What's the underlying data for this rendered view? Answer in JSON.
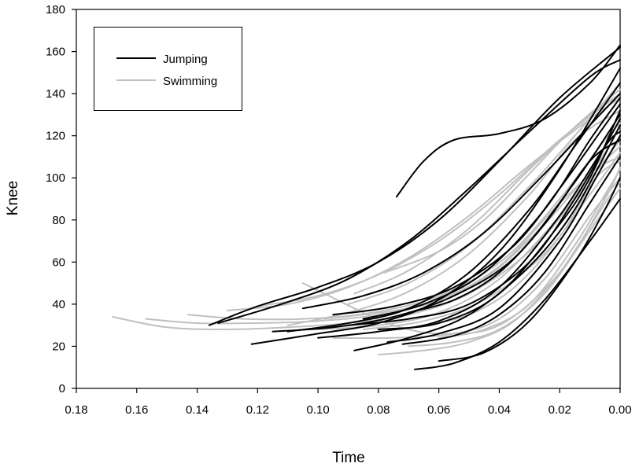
{
  "chart_data": {
    "type": "line",
    "title": "",
    "xlabel": "Time",
    "ylabel": "Knee",
    "xlim": [
      0.18,
      0.0
    ],
    "ylim": [
      0,
      180
    ],
    "x_reversed": true,
    "xticks": [
      "0.18",
      "0.16",
      "0.14",
      "0.12",
      "0.10",
      "0.08",
      "0.06",
      "0.04",
      "0.02",
      "0.00"
    ],
    "yticks": [
      "0",
      "20",
      "40",
      "60",
      "80",
      "100",
      "120",
      "140",
      "160",
      "180"
    ],
    "grid": false,
    "legend_position": "top-left",
    "series": [
      {
        "name": "Jumping",
        "color": "#000000",
        "curves": [
          [
            [
              0.074,
              91
            ],
            [
              0.065,
              108
            ],
            [
              0.055,
              118
            ],
            [
              0.04,
              121
            ],
            [
              0.025,
              128
            ],
            [
              0.01,
              145
            ],
            [
              0.0,
              163
            ]
          ],
          [
            [
              0.136,
              30
            ],
            [
              0.12,
              39
            ],
            [
              0.1,
              48
            ],
            [
              0.08,
              60
            ],
            [
              0.06,
              80
            ],
            [
              0.04,
              108
            ],
            [
              0.02,
              138
            ],
            [
              0.0,
              162
            ]
          ],
          [
            [
              0.133,
              31
            ],
            [
              0.11,
              41
            ],
            [
              0.09,
              52
            ],
            [
              0.07,
              70
            ],
            [
              0.05,
              95
            ],
            [
              0.03,
              122
            ],
            [
              0.01,
              148
            ],
            [
              0.0,
              156
            ]
          ],
          [
            [
              0.122,
              21
            ],
            [
              0.1,
              26
            ],
            [
              0.08,
              31
            ],
            [
              0.06,
              42
            ],
            [
              0.04,
              65
            ],
            [
              0.02,
              104
            ],
            [
              0.0,
              152
            ]
          ],
          [
            [
              0.11,
              27
            ],
            [
              0.09,
              31
            ],
            [
              0.07,
              38
            ],
            [
              0.05,
              55
            ],
            [
              0.03,
              85
            ],
            [
              0.015,
              115
            ],
            [
              0.0,
              145
            ]
          ],
          [
            [
              0.105,
              38
            ],
            [
              0.085,
              44
            ],
            [
              0.065,
              55
            ],
            [
              0.045,
              74
            ],
            [
              0.025,
              102
            ],
            [
              0.01,
              125
            ],
            [
              0.0,
              140
            ]
          ],
          [
            [
              0.095,
              35
            ],
            [
              0.075,
              39
            ],
            [
              0.055,
              48
            ],
            [
              0.035,
              68
            ],
            [
              0.02,
              95
            ],
            [
              0.005,
              125
            ],
            [
              0.0,
              135
            ]
          ],
          [
            [
              0.09,
              30
            ],
            [
              0.07,
              33
            ],
            [
              0.05,
              40
            ],
            [
              0.03,
              60
            ],
            [
              0.015,
              90
            ],
            [
              0.005,
              115
            ],
            [
              0.0,
              128
            ]
          ],
          [
            [
              0.088,
              18
            ],
            [
              0.07,
              24
            ],
            [
              0.05,
              35
            ],
            [
              0.03,
              58
            ],
            [
              0.015,
              85
            ],
            [
              0.0,
              125
            ]
          ],
          [
            [
              0.08,
              28
            ],
            [
              0.06,
              31
            ],
            [
              0.04,
              45
            ],
            [
              0.02,
              78
            ],
            [
              0.01,
              100
            ],
            [
              0.0,
              132
            ]
          ],
          [
            [
              0.077,
              22
            ],
            [
              0.06,
              26
            ],
            [
              0.04,
              38
            ],
            [
              0.02,
              70
            ],
            [
              0.008,
              100
            ],
            [
              0.0,
              120
            ]
          ],
          [
            [
              0.068,
              9
            ],
            [
              0.055,
              12
            ],
            [
              0.04,
              22
            ],
            [
              0.025,
              42
            ],
            [
              0.01,
              70
            ],
            [
              0.0,
              90
            ]
          ],
          [
            [
              0.06,
              13
            ],
            [
              0.045,
              17
            ],
            [
              0.03,
              32
            ],
            [
              0.015,
              60
            ],
            [
              0.005,
              85
            ],
            [
              0.0,
              100
            ]
          ],
          [
            [
              0.085,
              33
            ],
            [
              0.065,
              40
            ],
            [
              0.045,
              55
            ],
            [
              0.025,
              85
            ],
            [
              0.01,
              118
            ],
            [
              0.0,
              138
            ]
          ],
          [
            [
              0.1,
              24
            ],
            [
              0.08,
              27
            ],
            [
              0.06,
              32
            ],
            [
              0.04,
              48
            ],
            [
              0.02,
              82
            ],
            [
              0.005,
              115
            ],
            [
              0.0,
              122
            ]
          ],
          [
            [
              0.07,
              36
            ],
            [
              0.055,
              42
            ],
            [
              0.04,
              55
            ],
            [
              0.025,
              78
            ],
            [
              0.01,
              108
            ],
            [
              0.0,
              118
            ]
          ],
          [
            [
              0.115,
              27
            ],
            [
              0.095,
              29
            ],
            [
              0.075,
              34
            ],
            [
              0.055,
              44
            ],
            [
              0.035,
              62
            ],
            [
              0.015,
              98
            ],
            [
              0.0,
              130
            ]
          ],
          [
            [
              0.072,
              21
            ],
            [
              0.055,
              25
            ],
            [
              0.04,
              35
            ],
            [
              0.025,
              55
            ],
            [
              0.01,
              88
            ],
            [
              0.0,
              110
            ]
          ]
        ]
      },
      {
        "name": "Swimming",
        "color": "#c0c0c0",
        "curves": [
          [
            [
              0.168,
              34
            ],
            [
              0.15,
              29
            ],
            [
              0.13,
              28
            ],
            [
              0.11,
              29
            ],
            [
              0.09,
              31
            ],
            [
              0.07,
              35
            ],
            [
              0.05,
              45
            ],
            [
              0.03,
              65
            ],
            [
              0.015,
              90
            ],
            [
              0.0,
              118
            ]
          ],
          [
            [
              0.157,
              33
            ],
            [
              0.14,
              31
            ],
            [
              0.12,
              31
            ],
            [
              0.1,
              32
            ],
            [
              0.08,
              35
            ],
            [
              0.06,
              42
            ],
            [
              0.04,
              58
            ],
            [
              0.02,
              88
            ],
            [
              0.0,
              115
            ]
          ],
          [
            [
              0.143,
              35
            ],
            [
              0.125,
              33
            ],
            [
              0.105,
              33
            ],
            [
              0.085,
              35
            ],
            [
              0.065,
              40
            ],
            [
              0.045,
              52
            ],
            [
              0.025,
              78
            ],
            [
              0.01,
              102
            ],
            [
              0.0,
              110
            ]
          ],
          [
            [
              0.13,
              37
            ],
            [
              0.11,
              40
            ],
            [
              0.09,
              48
            ],
            [
              0.07,
              62
            ],
            [
              0.05,
              82
            ],
            [
              0.03,
              106
            ],
            [
              0.01,
              128
            ],
            [
              0.0,
              138
            ]
          ],
          [
            [
              0.12,
              39
            ],
            [
              0.1,
              44
            ],
            [
              0.08,
              54
            ],
            [
              0.06,
              70
            ],
            [
              0.04,
              92
            ],
            [
              0.02,
              118
            ],
            [
              0.0,
              140
            ]
          ],
          [
            [
              0.105,
              50
            ],
            [
              0.095,
              43
            ],
            [
              0.085,
              36
            ],
            [
              0.075,
              30
            ],
            [
              0.06,
              26
            ],
            [
              0.04,
              30
            ],
            [
              0.02,
              55
            ],
            [
              0.005,
              90
            ],
            [
              0.0,
              105
            ]
          ],
          [
            [
              0.1,
              28
            ],
            [
              0.08,
              30
            ],
            [
              0.06,
              36
            ],
            [
              0.04,
              52
            ],
            [
              0.02,
              82
            ],
            [
              0.005,
              112
            ],
            [
              0.0,
              125
            ]
          ],
          [
            [
              0.095,
              24
            ],
            [
              0.075,
              24
            ],
            [
              0.055,
              26
            ],
            [
              0.04,
              33
            ],
            [
              0.025,
              52
            ],
            [
              0.01,
              82
            ],
            [
              0.0,
              100
            ]
          ],
          [
            [
              0.09,
              40
            ],
            [
              0.07,
              50
            ],
            [
              0.05,
              68
            ],
            [
              0.03,
              96
            ],
            [
              0.015,
              120
            ],
            [
              0.0,
              145
            ]
          ],
          [
            [
              0.08,
              16
            ],
            [
              0.065,
              18
            ],
            [
              0.05,
              22
            ],
            [
              0.035,
              32
            ],
            [
              0.02,
              55
            ],
            [
              0.005,
              88
            ],
            [
              0.0,
              98
            ]
          ],
          [
            [
              0.085,
              28
            ],
            [
              0.065,
              32
            ],
            [
              0.045,
              42
            ],
            [
              0.025,
              64
            ],
            [
              0.01,
              92
            ],
            [
              0.0,
              112
            ]
          ],
          [
            [
              0.078,
              55
            ],
            [
              0.06,
              65
            ],
            [
              0.045,
              80
            ],
            [
              0.03,
              102
            ],
            [
              0.015,
              124
            ],
            [
              0.0,
              140
            ]
          ],
          [
            [
              0.11,
              30
            ],
            [
              0.09,
              36
            ],
            [
              0.07,
              46
            ],
            [
              0.05,
              64
            ],
            [
              0.03,
              92
            ],
            [
              0.015,
              118
            ],
            [
              0.0,
              132
            ]
          ],
          [
            [
              0.07,
              20
            ],
            [
              0.055,
              22
            ],
            [
              0.04,
              28
            ],
            [
              0.025,
              45
            ],
            [
              0.01,
              75
            ],
            [
              0.0,
              95
            ]
          ],
          [
            [
              0.065,
              30
            ],
            [
              0.05,
              35
            ],
            [
              0.035,
              48
            ],
            [
              0.02,
              72
            ],
            [
              0.008,
              100
            ],
            [
              0.0,
              108
            ]
          ],
          [
            [
              0.088,
              45
            ],
            [
              0.07,
              56
            ],
            [
              0.05,
              76
            ],
            [
              0.03,
              104
            ],
            [
              0.012,
              128
            ],
            [
              0.0,
              142
            ]
          ],
          [
            [
              0.06,
              24
            ],
            [
              0.045,
              28
            ],
            [
              0.03,
              40
            ],
            [
              0.015,
              68
            ],
            [
              0.005,
              92
            ],
            [
              0.0,
              104
            ]
          ],
          [
            [
              0.098,
              33
            ],
            [
              0.078,
              37
            ],
            [
              0.058,
              45
            ],
            [
              0.038,
              62
            ],
            [
              0.02,
              90
            ],
            [
              0.005,
              118
            ],
            [
              0.0,
              126
            ]
          ]
        ]
      }
    ]
  }
}
